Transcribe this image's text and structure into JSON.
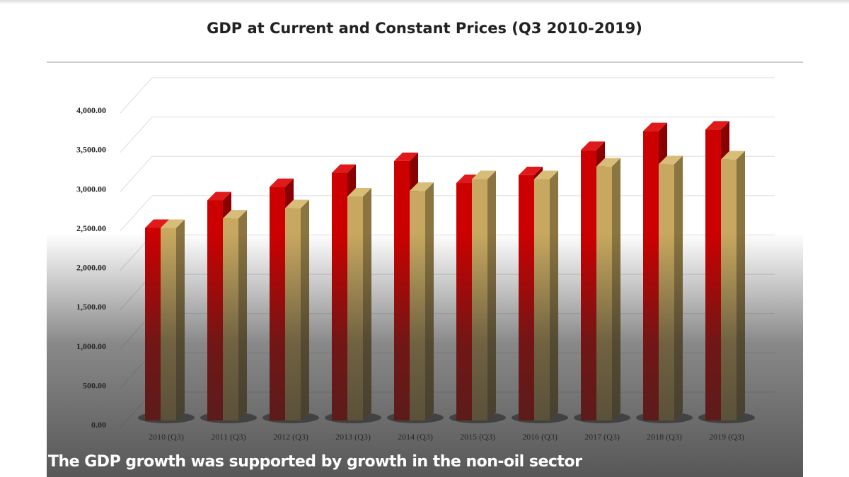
{
  "chart_data": {
    "type": "bar",
    "title": "GDP at Current and Constant Prices (Q3 2010-2019)",
    "categories": [
      "2010 (Q3)",
      "2011 (Q3)",
      "2012 (Q3)",
      "2013 (Q3)",
      "2014 (Q3)",
      "2015 (Q3)",
      "2016 (Q3)",
      "2017 (Q3)",
      "2018 (Q3)",
      "2019 (Q3)"
    ],
    "series": [
      {
        "values": [
          2450,
          2800,
          2970,
          3150,
          3300,
          3020,
          3120,
          3440,
          3680,
          3700
        ],
        "color": "#cc0000"
      },
      {
        "values": [
          2450,
          2570,
          2700,
          2850,
          2920,
          3070,
          3070,
          3230,
          3260,
          3320
        ],
        "color": "#c8a860"
      }
    ],
    "yticks": [
      "0.00",
      "500.00",
      "1,000.00",
      "1,500.00",
      "2,000.00",
      "2,500.00",
      "3,000.00",
      "3,500.00",
      "4,000.00"
    ],
    "ylim": [
      0,
      4000
    ],
    "grid": true,
    "style": "3d-columns"
  },
  "caption": "The GDP growth was supported by growth in the non-oil sector"
}
